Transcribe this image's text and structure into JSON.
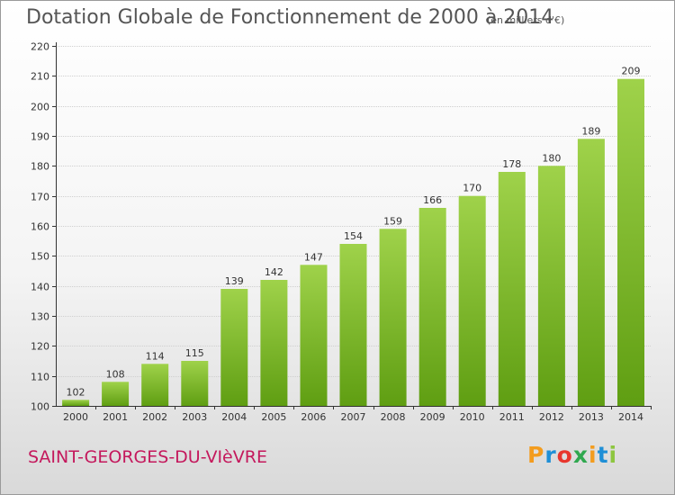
{
  "header": {
    "title": "Dotation Globale de Fonctionnement de 2000 à 2014",
    "unit_note": "(en milliers d'€)"
  },
  "footer": {
    "commune": "SAINT-GEORGES-DU-VIèVRE",
    "logo_letters": [
      "P",
      "r",
      "o",
      "x",
      "i",
      "t",
      "i"
    ],
    "logo_colors": [
      "#f39c1e",
      "#1f8fd6",
      "#e8362d",
      "#2fa84f",
      "#f39c1e",
      "#1f8fd6",
      "#8dc63f"
    ]
  },
  "chart_data": {
    "type": "bar",
    "title": "Dotation Globale de Fonctionnement de 2000 à 2014",
    "xlabel": "",
    "ylabel": "",
    "categories": [
      "2000",
      "2001",
      "2002",
      "2003",
      "2004",
      "2005",
      "2006",
      "2007",
      "2008",
      "2009",
      "2010",
      "2011",
      "2012",
      "2013",
      "2014"
    ],
    "values": [
      102,
      108,
      114,
      115,
      139,
      142,
      147,
      154,
      159,
      166,
      170,
      178,
      180,
      189,
      209
    ],
    "data_labels": [
      "102",
      "108",
      "114",
      "115",
      "139",
      "142",
      "147",
      "154",
      "159",
      "166",
      "170",
      "178",
      "180",
      "189",
      "209"
    ],
    "ylim": [
      100,
      220
    ],
    "yticks": [
      "100",
      "110",
      "120",
      "130",
      "140",
      "150",
      "160",
      "170",
      "180",
      "190",
      "200",
      "210",
      "220"
    ],
    "grid": true,
    "bar_color_light": "#9fd24a",
    "bar_color_dark": "#5f9e12"
  }
}
